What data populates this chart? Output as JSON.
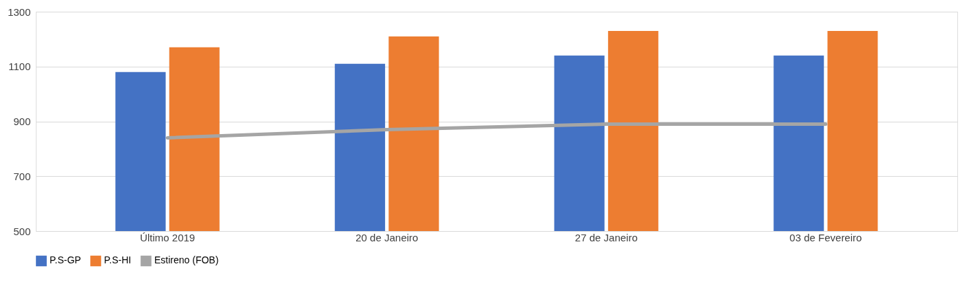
{
  "chart_data": {
    "type": "bar",
    "categories": [
      "Último 2019",
      "20 de Janeiro",
      "27 de Janeiro",
      "03 de Fevereiro"
    ],
    "series": [
      {
        "name": "P.S-GP",
        "color": "#4472c4",
        "values": [
          1080,
          1110,
          1140,
          1140
        ]
      },
      {
        "name": "P.S-HI",
        "color": "#ed7d31",
        "values": [
          1170,
          1210,
          1230,
          1230
        ]
      },
      {
        "name": "Estireno (FOB)",
        "type": "line",
        "color": "#a5a5a5",
        "values": [
          840,
          870,
          890,
          890
        ]
      }
    ],
    "ylim": [
      500,
      1300
    ],
    "yticks": [
      500,
      700,
      900,
      1100,
      1300
    ],
    "grid": "y",
    "legend": "bottom"
  }
}
